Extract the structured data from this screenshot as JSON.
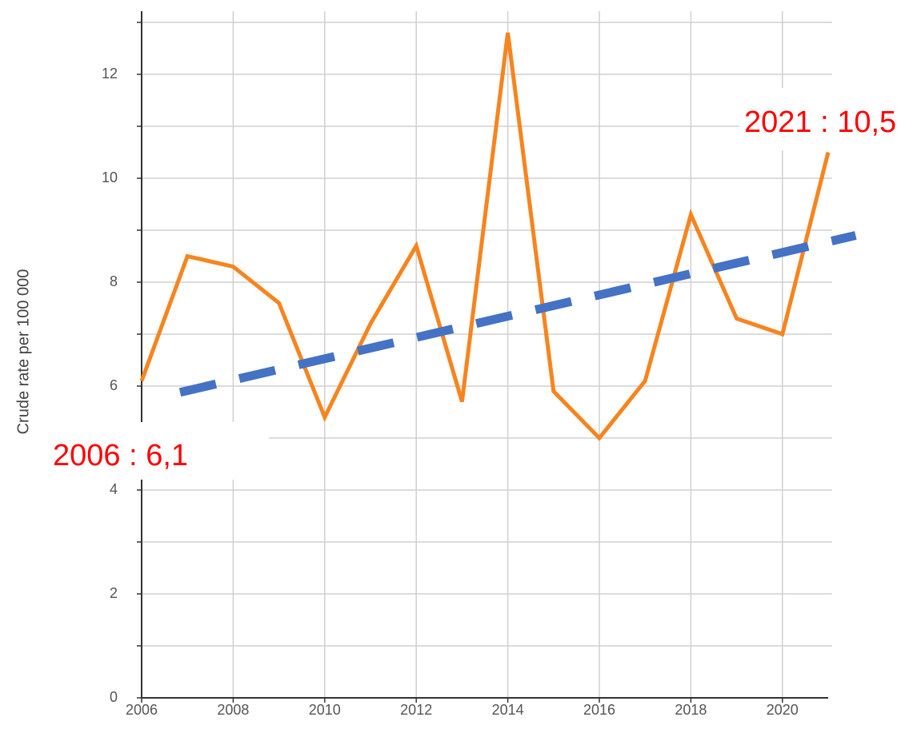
{
  "chart_data": {
    "type": "line",
    "y_label": "Crude rate per 100 000",
    "x": [
      2006,
      2007,
      2008,
      2009,
      2010,
      2011,
      2012,
      2013,
      2014,
      2015,
      2016,
      2017,
      2018,
      2019,
      2020,
      2021
    ],
    "series": [
      {
        "color": "#f7841e",
        "values": [
          6.1,
          8.5,
          8.3,
          7.6,
          5.4,
          7.2,
          8.7,
          5.7,
          12.8,
          5.9,
          5.0,
          6.1,
          9.3,
          7.3,
          7.0,
          10.5
        ]
      }
    ],
    "trend": {
      "color": "#4472c4",
      "x": [
        2006.84,
        2021.6
      ],
      "values": [
        5.88,
        8.9
      ]
    },
    "xlim": [
      2006,
      2021
    ],
    "xticks": [
      2006,
      2008,
      2010,
      2012,
      2014,
      2016,
      2018,
      2020
    ],
    "ylim": [
      0,
      13
    ],
    "yticks": [
      0,
      2,
      4,
      6,
      8,
      10,
      12
    ],
    "y_minor_ticks": [
      1,
      3,
      5,
      7,
      9,
      11,
      13
    ],
    "grid": true,
    "annotations": [
      "2006 : 6,1",
      "2021 : 10,5"
    ]
  }
}
